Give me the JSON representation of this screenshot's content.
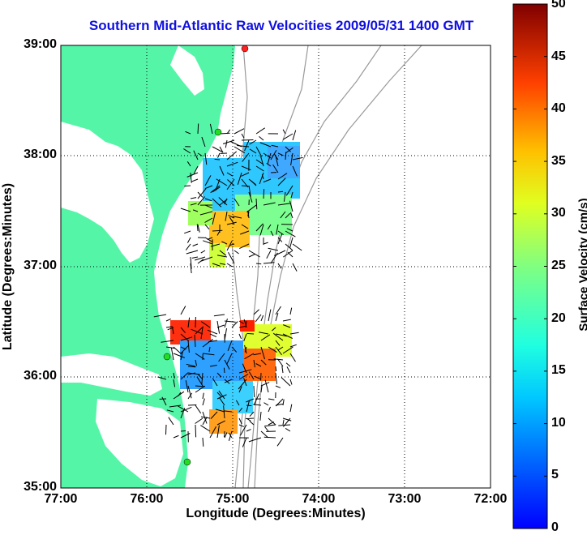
{
  "title": "Southern Mid-Atlantic Raw Velocities 2009/05/31 1400 GMT",
  "xlabel": "Longitude (Degrees:Minutes)",
  "ylabel": "Latitude (Degrees:Minutes)",
  "x_ticks": [
    "77:00",
    "76:00",
    "75:00",
    "74:00",
    "73:00",
    "72:00"
  ],
  "y_ticks": [
    "39:00",
    "38:00",
    "37:00",
    "36:00",
    "35:00"
  ],
  "colorbar": {
    "label": "Surface Velocity (cm/s)",
    "ticks": [
      "0",
      "5",
      "10",
      "15",
      "20",
      "25",
      "30",
      "35",
      "40",
      "45",
      "50"
    ],
    "range": [
      0,
      50
    ]
  },
  "colors": {
    "title": "#1010e0",
    "land": "#55f5a8",
    "station": "#22dd22",
    "station_alt": "#ff2222"
  }
}
